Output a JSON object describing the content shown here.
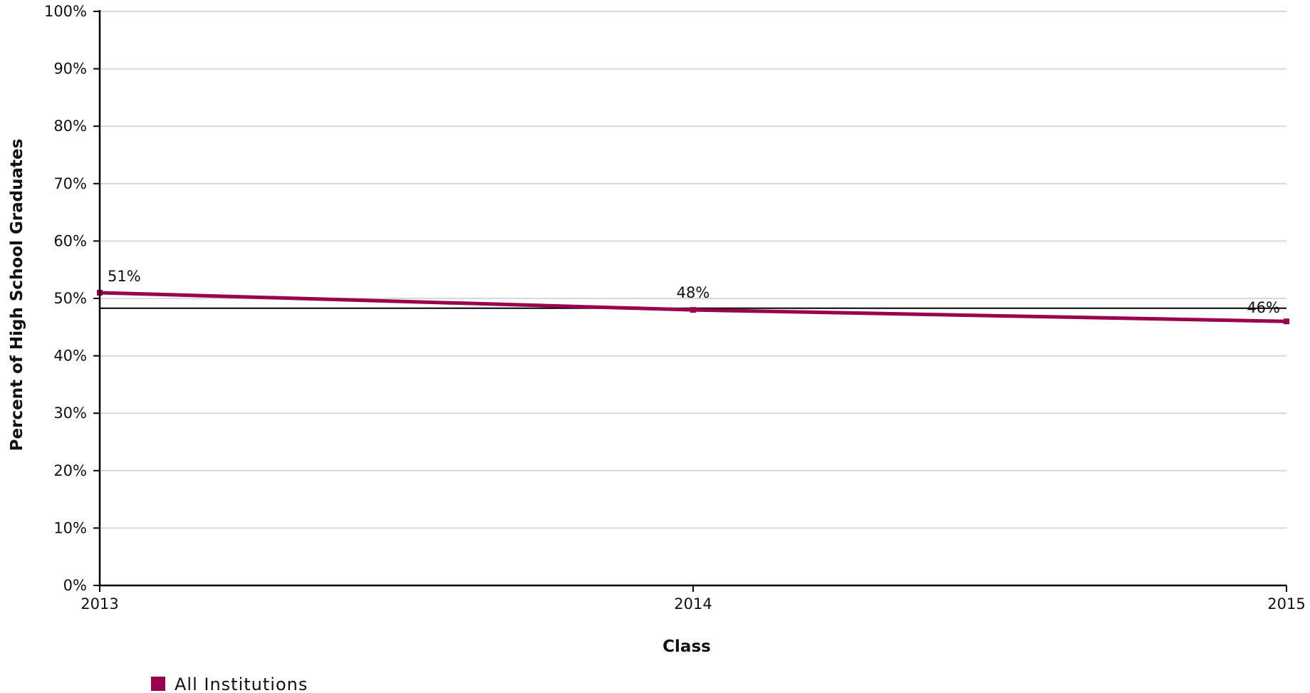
{
  "chart_data": {
    "type": "line",
    "xlabel": "Class",
    "ylabel": "Percent of High School Graduates",
    "categories": [
      "2013",
      "2014",
      "2015"
    ],
    "y_ticks": [
      "0%",
      "10%",
      "20%",
      "30%",
      "40%",
      "50%",
      "60%",
      "70%",
      "80%",
      "90%",
      "100%"
    ],
    "ylim": [
      0,
      100
    ],
    "grid": true,
    "reference_line": 48.3,
    "series": [
      {
        "name": "All Institutions",
        "color": "#99004d",
        "values": [
          51,
          48,
          46
        ],
        "labels": [
          "51%",
          "48%",
          "46%"
        ]
      }
    ],
    "legend_position": "bottom-left"
  }
}
